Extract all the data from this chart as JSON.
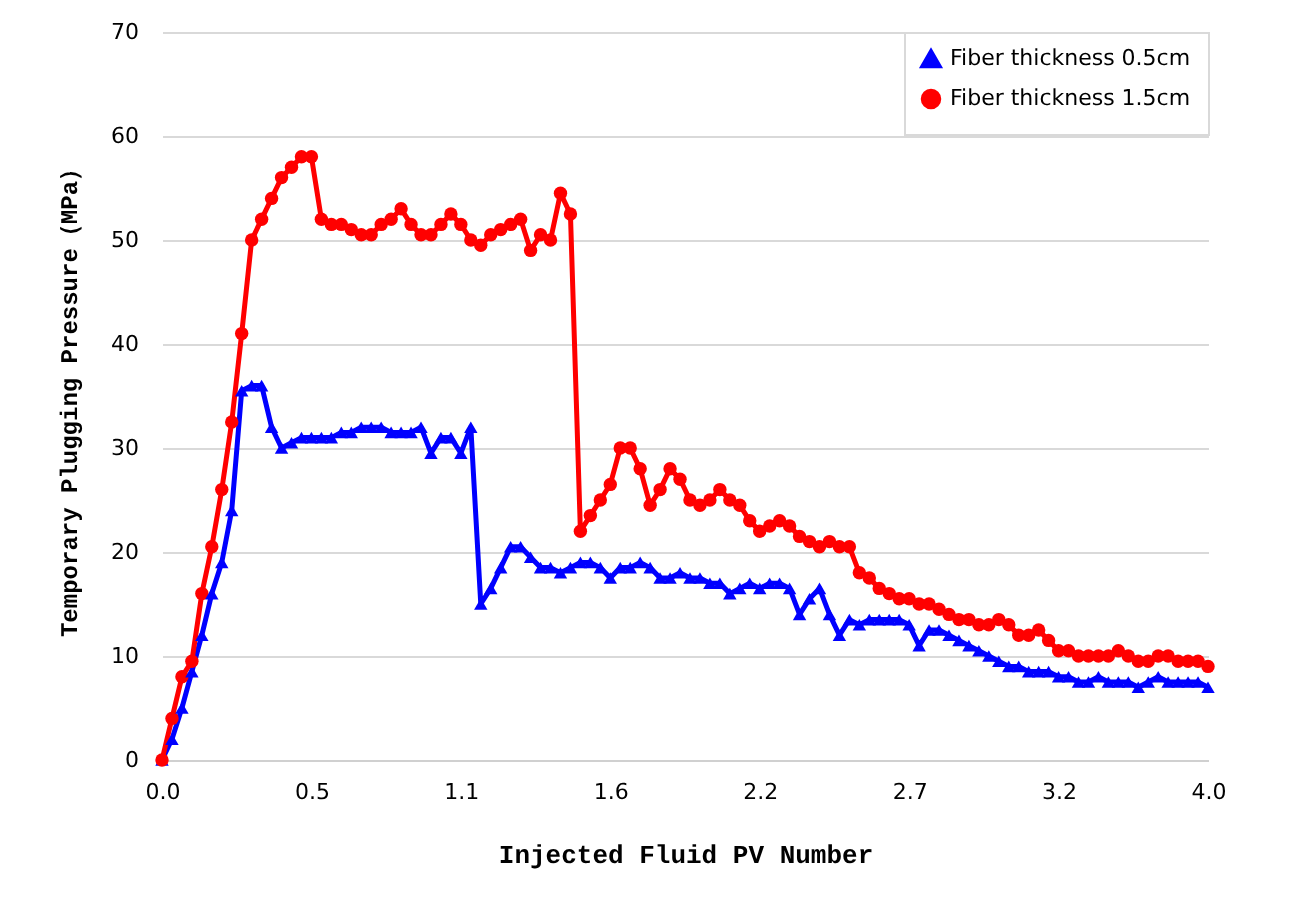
{
  "chart_data": {
    "type": "line",
    "xlabel": "Injected Fluid PV Number",
    "ylabel": "Temporary Plugging Pressure（MPa）",
    "categories": [
      "0.0",
      null,
      null,
      null,
      null,
      null,
      null,
      null,
      null,
      null,
      null,
      null,
      null,
      null,
      null,
      "0.5",
      null,
      null,
      null,
      null,
      null,
      null,
      null,
      null,
      null,
      null,
      null,
      null,
      null,
      null,
      "1.1",
      null,
      null,
      null,
      null,
      null,
      null,
      null,
      null,
      null,
      null,
      null,
      null,
      null,
      null,
      "1.6",
      null,
      null,
      null,
      null,
      null,
      null,
      null,
      null,
      null,
      null,
      null,
      null,
      null,
      null,
      "2.2",
      null,
      null,
      null,
      null,
      null,
      null,
      null,
      null,
      null,
      null,
      null,
      null,
      null,
      null,
      "2.7",
      null,
      null,
      null,
      null,
      null,
      null,
      null,
      null,
      null,
      null,
      null,
      null,
      null,
      null,
      "3.2",
      null,
      null,
      null,
      null,
      null,
      null,
      null,
      null,
      null,
      null,
      null,
      null,
      null,
      null,
      "4.0"
    ],
    "series": [
      {
        "name": "Fiber thickness 0.5cm",
        "color": "#0000ff",
        "marker": "triangle",
        "values": [
          0,
          2,
          5,
          8.5,
          12,
          16,
          19,
          24,
          35.5,
          36,
          36,
          32,
          30,
          30.5,
          31,
          31,
          31,
          31,
          31.5,
          31.5,
          32,
          32,
          32,
          31.5,
          31.5,
          31.5,
          32,
          29.5,
          31,
          31,
          29.5,
          32,
          15,
          16.5,
          18.5,
          20.5,
          20.5,
          19.5,
          18.5,
          18.5,
          18,
          18.5,
          19,
          19,
          18.5,
          17.5,
          18.5,
          18.5,
          19,
          18.5,
          17.5,
          17.5,
          18,
          17.5,
          17.5,
          17,
          17,
          16,
          16.5,
          17,
          16.5,
          17,
          17,
          16.5,
          14,
          15.5,
          16.5,
          14,
          12,
          13.5,
          13,
          13.5,
          13.5,
          13.5,
          13.5,
          13,
          11,
          12.5,
          12.5,
          12,
          11.5,
          11,
          10.5,
          10,
          9.5,
          9,
          9,
          8.5,
          8.5,
          8.5,
          8,
          8,
          7.5,
          7.5,
          8,
          7.5,
          7.5,
          7.5,
          7,
          7.5,
          8,
          7.5,
          7.5,
          7.5,
          7.5,
          7
        ]
      },
      {
        "name": "Fiber thickness 1.5cm",
        "color": "#ff0000",
        "marker": "circle",
        "values": [
          0,
          4,
          8,
          9.5,
          16,
          20.5,
          26,
          32.5,
          41,
          50,
          52,
          54,
          56,
          57,
          58,
          58,
          52,
          51.5,
          51.5,
          51,
          50.5,
          50.5,
          51.5,
          52,
          53,
          51.5,
          50.5,
          50.5,
          51.5,
          52.5,
          51.5,
          50,
          49.5,
          50.5,
          51,
          51.5,
          52,
          49,
          50.5,
          50,
          54.5,
          52.5,
          22,
          23.5,
          25,
          26.5,
          30,
          30,
          28,
          24.5,
          26,
          28,
          27,
          25,
          24.5,
          25,
          26,
          25,
          24.5,
          23,
          22,
          22.5,
          23,
          22.5,
          21.5,
          21,
          20.5,
          21,
          20.5,
          20.5,
          18,
          17.5,
          16.5,
          16,
          15.5,
          15.5,
          15,
          15,
          14.5,
          14,
          13.5,
          13.5,
          13,
          13,
          13.5,
          13,
          12,
          12,
          12.5,
          11.5,
          10.5,
          10.5,
          10,
          10,
          10,
          10,
          10.5,
          10,
          9.5,
          9.5,
          10,
          10,
          9.5,
          9.5,
          9.5,
          9
        ]
      }
    ],
    "ylim": [
      0,
      70
    ],
    "yticks": [
      0,
      10,
      20,
      30,
      40,
      50,
      60,
      70
    ],
    "grid": "y",
    "legend": "top right"
  }
}
